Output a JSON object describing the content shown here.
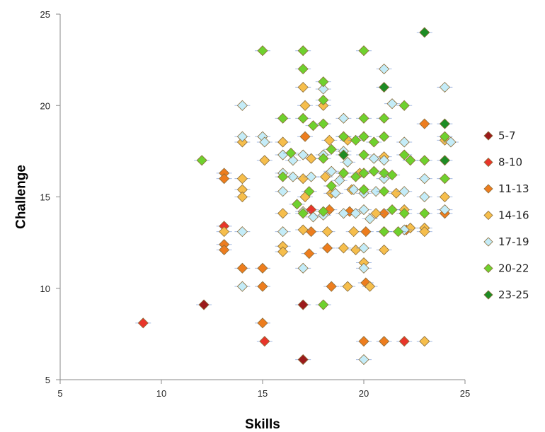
{
  "chart_data": {
    "type": "scatter",
    "title": "",
    "xlabel": "Skills",
    "ylabel": "Challenge",
    "xlim": [
      5,
      25
    ],
    "ylim": [
      5,
      25
    ],
    "xticks": [
      "5",
      "10",
      "15",
      "20",
      "25"
    ],
    "yticks": [
      "5",
      "10",
      "15",
      "20",
      "25"
    ],
    "grid": false,
    "legend_position": "right",
    "marker": "diamond",
    "series": [
      {
        "name": "5-7",
        "color": "#9b1b1b",
        "points": [
          [
            12.1,
            9.1
          ],
          [
            17,
            9.1
          ],
          [
            17,
            6.1
          ]
        ]
      },
      {
        "name": "8-10",
        "color": "#e8352a",
        "points": [
          [
            9.1,
            8.1
          ],
          [
            15.1,
            7.1
          ],
          [
            22,
            7.1
          ],
          [
            13.1,
            13.4
          ],
          [
            17.4,
            14.3
          ]
        ]
      },
      {
        "name": "11-13",
        "color": "#ed7d1e",
        "points": [
          [
            13.1,
            16.3
          ],
          [
            13.1,
            16
          ],
          [
            13.1,
            12.4
          ],
          [
            13.1,
            12.1
          ],
          [
            14,
            11.1
          ],
          [
            15,
            11.1
          ],
          [
            15,
            10.1
          ],
          [
            15,
            8.1
          ],
          [
            20,
            7.1
          ],
          [
            21,
            7.1
          ],
          [
            17.1,
            18.3
          ],
          [
            17.4,
            13.1
          ],
          [
            18.3,
            14.3
          ],
          [
            18.2,
            12.2
          ],
          [
            19.3,
            14.2
          ],
          [
            20.1,
            13.1
          ],
          [
            20.1,
            10.3
          ],
          [
            21,
            14.1
          ],
          [
            22.1,
            13.2
          ],
          [
            23,
            19
          ],
          [
            24,
            14.1
          ],
          [
            17.3,
            11.9
          ],
          [
            18.4,
            10.1
          ]
        ]
      },
      {
        "name": "14-16",
        "color": "#f6be4c",
        "points": [
          [
            13.1,
            13.1
          ],
          [
            14,
            16
          ],
          [
            14,
            15.4
          ],
          [
            14,
            15
          ],
          [
            14,
            18
          ],
          [
            15.1,
            17
          ],
          [
            16,
            18
          ],
          [
            16,
            14.1
          ],
          [
            16,
            12.3
          ],
          [
            16,
            12
          ],
          [
            17,
            21
          ],
          [
            17.1,
            20
          ],
          [
            17,
            16
          ],
          [
            17.1,
            15
          ],
          [
            17,
            13.2
          ],
          [
            17.4,
            17.1
          ],
          [
            18,
            20
          ],
          [
            18.3,
            18.1
          ],
          [
            18.1,
            16.1
          ],
          [
            18.4,
            15.2
          ],
          [
            18.2,
            13.1
          ],
          [
            19,
            12.2
          ],
          [
            19.4,
            15.4
          ],
          [
            19.5,
            13.1
          ],
          [
            19.2,
            10.1
          ],
          [
            19.6,
            12.1
          ],
          [
            19.2,
            18.1
          ],
          [
            20,
            11.4
          ],
          [
            20.3,
            10.1
          ],
          [
            21,
            17.2
          ],
          [
            21,
            12.1
          ],
          [
            21.6,
            15.2
          ],
          [
            22.3,
            13.3
          ],
          [
            23,
            13.3
          ],
          [
            23,
            13.1
          ],
          [
            23,
            7.1
          ],
          [
            24,
            15
          ],
          [
            24,
            18.1
          ],
          [
            22,
            14.3
          ],
          [
            20.6,
            14.1
          ],
          [
            19.8,
            16.3
          ]
        ]
      },
      {
        "name": "17-19",
        "color": "#c4ecf8",
        "points": [
          [
            14,
            20
          ],
          [
            14,
            18.3
          ],
          [
            15,
            18.3
          ],
          [
            15.1,
            18
          ],
          [
            14,
            13.1
          ],
          [
            14,
            10.1
          ],
          [
            16,
            17.3
          ],
          [
            16,
            16.3
          ],
          [
            16,
            15.3
          ],
          [
            16,
            13.1
          ],
          [
            16.5,
            17
          ],
          [
            16.5,
            16.1
          ],
          [
            17,
            17.3
          ],
          [
            17,
            14.2
          ],
          [
            17,
            11.1
          ],
          [
            17.4,
            16.1
          ],
          [
            17.5,
            13.9
          ],
          [
            18,
            20.9
          ],
          [
            18,
            17.3
          ],
          [
            18,
            14
          ],
          [
            18.4,
            16.4
          ],
          [
            18.6,
            15.2
          ],
          [
            19,
            19.3
          ],
          [
            19,
            18.3
          ],
          [
            19,
            17.5
          ],
          [
            19,
            16.3
          ],
          [
            19,
            14.1
          ],
          [
            19.5,
            15.4
          ],
          [
            19.6,
            14.1
          ],
          [
            20,
            18.3
          ],
          [
            20,
            16.3
          ],
          [
            20,
            15.2
          ],
          [
            20,
            14.3
          ],
          [
            20,
            12.2
          ],
          [
            20,
            11.1
          ],
          [
            20,
            6.1
          ],
          [
            20.5,
            17.1
          ],
          [
            20.6,
            15.3
          ],
          [
            21,
            22
          ],
          [
            21,
            17
          ],
          [
            21,
            16
          ],
          [
            21,
            13.1
          ],
          [
            21.4,
            20.1
          ],
          [
            22,
            18
          ],
          [
            22,
            15.3
          ],
          [
            22,
            13.2
          ],
          [
            23,
            16
          ],
          [
            23,
            15
          ],
          [
            24,
            21
          ],
          [
            24,
            14.3
          ],
          [
            24.3,
            18
          ],
          [
            19.2,
            16.9
          ],
          [
            18.8,
            15.9
          ],
          [
            20.3,
            13.8
          ]
        ]
      },
      {
        "name": "20-22",
        "color": "#6fd12e",
        "points": [
          [
            12,
            17
          ],
          [
            15,
            23
          ],
          [
            17,
            23
          ],
          [
            17,
            22
          ],
          [
            16,
            19.3
          ],
          [
            16,
            16.1
          ],
          [
            16.4,
            17.4
          ],
          [
            17,
            19.3
          ],
          [
            17.5,
            18.9
          ],
          [
            17.3,
            15.3
          ],
          [
            17,
            14.1
          ],
          [
            18,
            21.3
          ],
          [
            18,
            20.3
          ],
          [
            18,
            19
          ],
          [
            18,
            17.1
          ],
          [
            18,
            14.2
          ],
          [
            18,
            9.1
          ],
          [
            18.4,
            17.6
          ],
          [
            18.4,
            15.6
          ],
          [
            19,
            18.3
          ],
          [
            19,
            16.3
          ],
          [
            19.6,
            18.1
          ],
          [
            19.6,
            16.1
          ],
          [
            20,
            23
          ],
          [
            20,
            19.3
          ],
          [
            20,
            18.3
          ],
          [
            20,
            17.3
          ],
          [
            20,
            16.3
          ],
          [
            20,
            15.4
          ],
          [
            20.5,
            18
          ],
          [
            20.5,
            16.4
          ],
          [
            21,
            19.3
          ],
          [
            21,
            18.3
          ],
          [
            21,
            16.3
          ],
          [
            21,
            15.3
          ],
          [
            21,
            13.1
          ],
          [
            21.4,
            16.2
          ],
          [
            21.4,
            14.3
          ],
          [
            22,
            17.3
          ],
          [
            22,
            14.1
          ],
          [
            22,
            20
          ],
          [
            22.3,
            17
          ],
          [
            23,
            17
          ],
          [
            23,
            14.1
          ],
          [
            24,
            18.3
          ],
          [
            24,
            16
          ],
          [
            21.7,
            13.1
          ],
          [
            16.7,
            14.6
          ]
        ]
      },
      {
        "name": "23-25",
        "color": "#1e8c24",
        "points": [
          [
            23,
            24
          ],
          [
            21,
            21
          ],
          [
            24,
            19
          ],
          [
            24,
            17
          ],
          [
            19,
            17.3
          ]
        ]
      }
    ]
  }
}
